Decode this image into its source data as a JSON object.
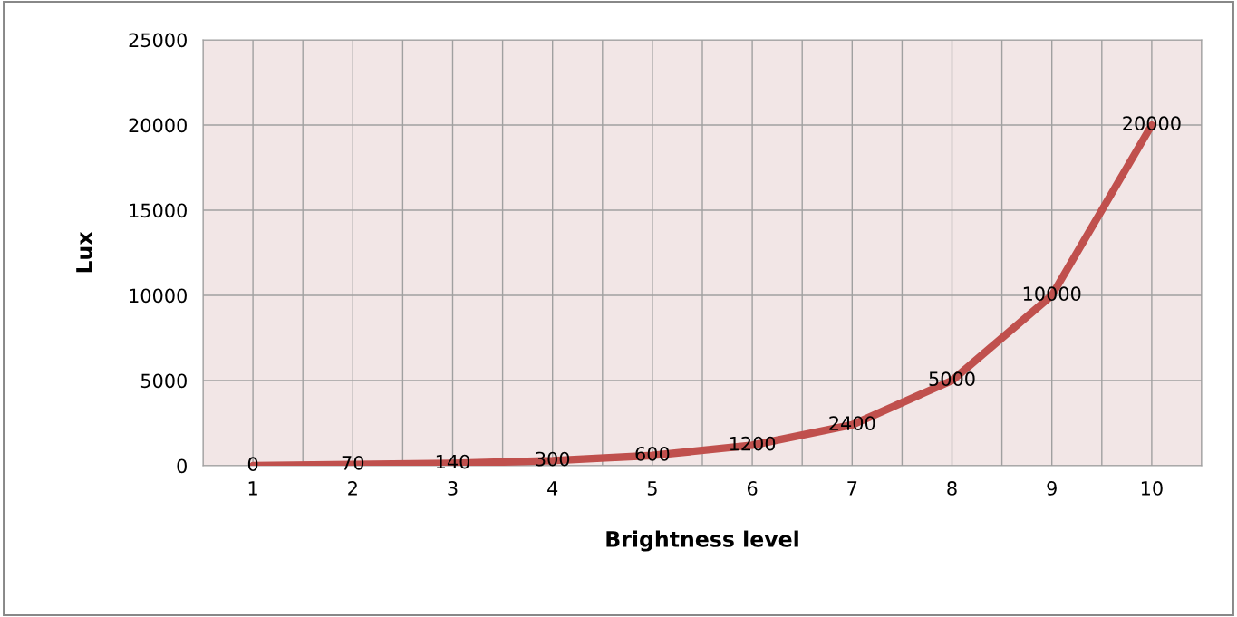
{
  "chart_data": {
    "type": "line",
    "xlabel": "Brightness level",
    "ylabel": "Lux",
    "categories": [
      "1",
      "2",
      "3",
      "4",
      "5",
      "6",
      "7",
      "8",
      "9",
      "10"
    ],
    "series": [
      {
        "color": "#c0504d",
        "values": [
          0,
          70,
          140,
          300,
          600,
          1200,
          2400,
          5000,
          10000,
          20000
        ]
      }
    ],
    "ylim": [
      0,
      25000
    ],
    "yticks": [
      0,
      5000,
      10000,
      15000,
      20000,
      25000
    ],
    "grid": true,
    "data_labels": true,
    "legend": false,
    "marker": "none",
    "line_style": "solid"
  }
}
